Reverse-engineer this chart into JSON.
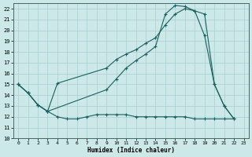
{
  "xlabel": "Humidex (Indice chaleur)",
  "xlim": [
    -0.5,
    23.5
  ],
  "ylim": [
    10,
    22.5
  ],
  "yticks": [
    10,
    11,
    12,
    13,
    14,
    15,
    16,
    17,
    18,
    19,
    20,
    21,
    22
  ],
  "xticks": [
    0,
    1,
    2,
    3,
    4,
    5,
    6,
    7,
    8,
    9,
    10,
    11,
    12,
    13,
    14,
    15,
    16,
    17,
    18,
    19,
    20,
    21,
    22,
    23
  ],
  "bg_color": "#cce8e8",
  "grid_color": "#aacece",
  "line_color": "#1a6060",
  "line1_x": [
    0,
    1,
    2,
    3,
    4,
    5,
    6,
    7,
    8,
    9,
    10,
    11,
    12,
    13,
    14,
    15,
    16,
    17,
    18,
    19,
    20,
    21,
    22
  ],
  "line1_y": [
    15.0,
    14.2,
    13.1,
    12.5,
    12.0,
    11.8,
    11.8,
    12.0,
    12.2,
    12.2,
    12.2,
    12.2,
    12.0,
    12.0,
    12.0,
    12.0,
    12.0,
    12.0,
    11.8,
    11.8,
    11.8,
    11.8,
    11.8
  ],
  "line2_x": [
    0,
    1,
    2,
    3,
    9,
    10,
    11,
    12,
    13,
    14,
    15,
    16,
    17,
    18,
    19,
    20,
    21,
    22
  ],
  "line2_y": [
    15.0,
    14.2,
    13.1,
    12.5,
    14.5,
    15.5,
    16.5,
    17.2,
    17.8,
    18.5,
    21.5,
    22.3,
    22.2,
    21.8,
    21.5,
    15.0,
    13.0,
    11.8
  ],
  "line3_x": [
    0,
    1,
    2,
    3,
    4,
    9,
    10,
    11,
    12,
    13,
    14,
    15,
    16,
    17,
    18,
    19,
    20,
    21,
    22
  ],
  "line3_y": [
    15.0,
    14.2,
    13.1,
    12.5,
    15.1,
    16.5,
    17.3,
    17.8,
    18.2,
    18.8,
    19.3,
    20.5,
    21.5,
    22.0,
    21.8,
    19.5,
    15.0,
    13.0,
    11.8
  ]
}
